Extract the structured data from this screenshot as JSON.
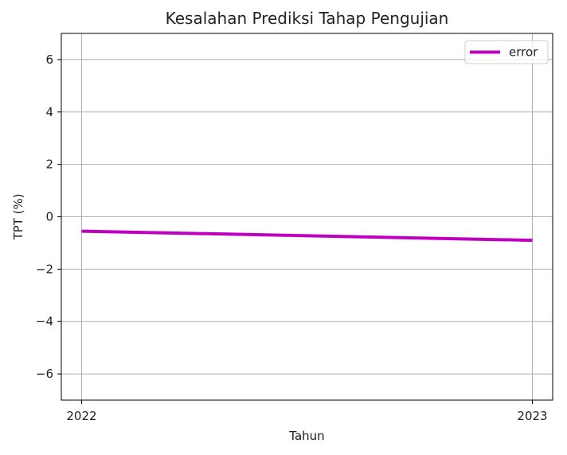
{
  "chart_data": {
    "type": "line",
    "title": "Kesalahan Prediksi Tahap Pengujian",
    "xlabel": "Tahun",
    "ylabel": "TPT (%)",
    "x": [
      "2022",
      "2023"
    ],
    "xlim": [
      0,
      1
    ],
    "ylim": [
      -7,
      7
    ],
    "yticks": [
      -6,
      -4,
      -2,
      0,
      2,
      4,
      6
    ],
    "ytick_labels": [
      "−6",
      "−4",
      "−2",
      "0",
      "2",
      "4",
      "6"
    ],
    "grid": true,
    "legend_position": "top-right",
    "series": [
      {
        "name": "error",
        "color": "#c000c0",
        "values": [
          -0.55,
          -0.9
        ]
      }
    ]
  }
}
